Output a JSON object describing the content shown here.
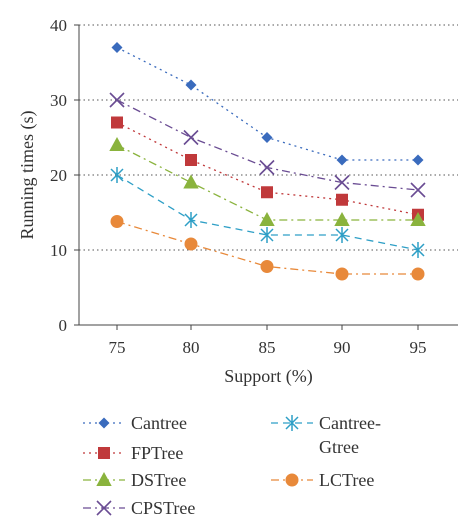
{
  "chart_data": {
    "type": "line",
    "xlabel": "Support (%)",
    "ylabel": "Running times (s)",
    "x": [
      75,
      80,
      85,
      90,
      95
    ],
    "xticks": [
      "75",
      "80",
      "85",
      "90",
      "95"
    ],
    "ylim": [
      0,
      40
    ],
    "yticks": [
      "0",
      "10",
      "20",
      "30",
      "40"
    ],
    "grid": "horizontal dotted",
    "legend_position": "bottom",
    "series": [
      {
        "name": "Cantree",
        "values": [
          37,
          32,
          25,
          22,
          22
        ],
        "color": "#3a6bbd",
        "marker": "diamond",
        "dash": "dotted"
      },
      {
        "name": "FPTree",
        "values": [
          27,
          22,
          17.7,
          16.7,
          14.7
        ],
        "color": "#c0393b",
        "marker": "square",
        "dash": "dotted"
      },
      {
        "name": "DSTree",
        "values": [
          24,
          19,
          14,
          14,
          14
        ],
        "color": "#8ab33d",
        "marker": "triangle",
        "dash": "dash-dot"
      },
      {
        "name": "CPSTree",
        "values": [
          30,
          25,
          21,
          19,
          18
        ],
        "color": "#6a4c93",
        "marker": "x",
        "dash": "dash-dot"
      },
      {
        "name": "Cantree-\nGtree",
        "values": [
          20,
          14,
          12,
          12,
          10
        ],
        "color": "#2e9fc6",
        "marker": "asterisk",
        "dash": "dashed"
      },
      {
        "name": "LCTree",
        "values": [
          13.8,
          10.8,
          7.8,
          6.8,
          6.8
        ],
        "color": "#e8893a",
        "marker": "circle",
        "dash": "dash-dot"
      }
    ]
  }
}
